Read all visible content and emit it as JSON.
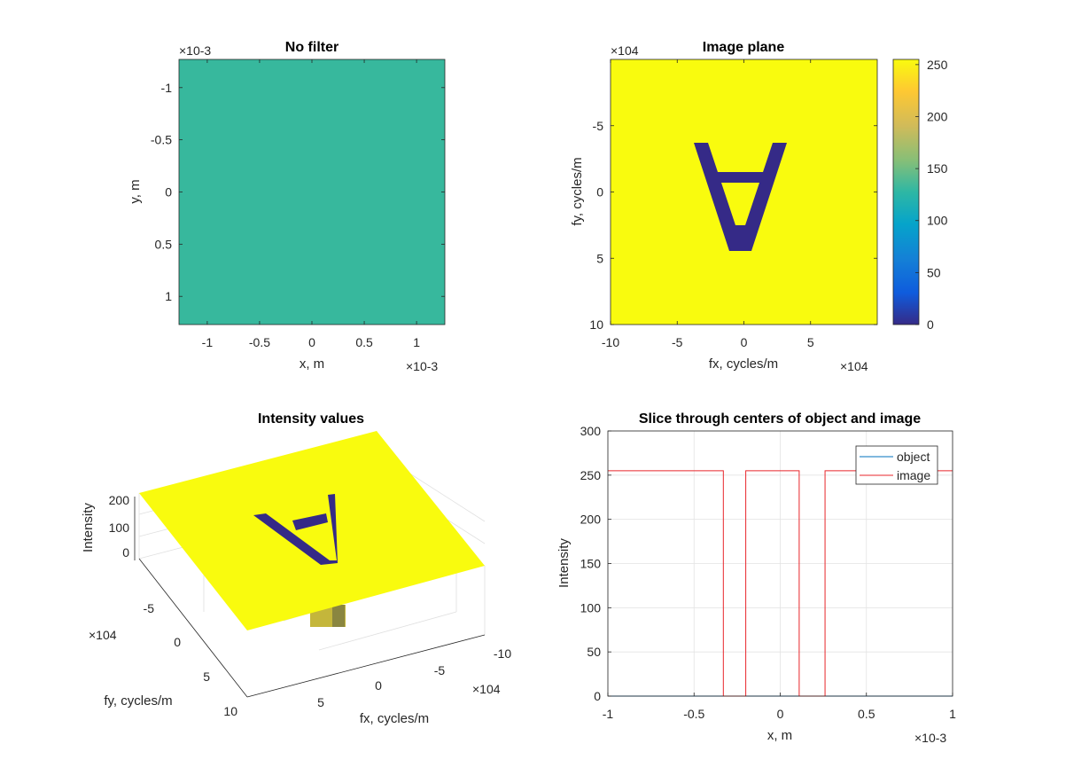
{
  "chart_data": [
    {
      "type": "heatmap",
      "title": "No filter",
      "xlabel": "x, m",
      "ylabel": "y, m",
      "x_exponent": "×10-3",
      "y_exponent": "×10-3",
      "xlim": [
        -1.27,
        1.27
      ],
      "ylim": [
        -1.27,
        1.27
      ],
      "x_ticks": [
        -1,
        -0.5,
        0,
        0.5,
        1
      ],
      "y_ticks": [
        -1,
        -0.5,
        0,
        0.5,
        1
      ],
      "x_tick_labels": [
        "-1",
        "-0.5",
        "0",
        "0.5",
        "1"
      ],
      "y_tick_labels": [
        "-1",
        "-0.5",
        "0",
        "0.5",
        "1"
      ],
      "fill_value": 128,
      "fill_color": "#37b89d"
    },
    {
      "type": "heatmap",
      "title": "Image plane",
      "xlabel": "fx, cycles/m",
      "ylabel": "fy, cycles/m",
      "x_exponent": "×104",
      "y_exponent": "×104",
      "xlim": [
        -10,
        10
      ],
      "ylim": [
        -10,
        10
      ],
      "x_ticks": [
        -10,
        -5,
        0,
        5
      ],
      "y_ticks": [
        -5,
        0,
        5,
        10
      ],
      "x_tick_labels": [
        "-10",
        "-5",
        "0",
        "5"
      ],
      "y_tick_labels": [
        "-5",
        "0",
        "5",
        "10"
      ],
      "background_value": 255,
      "background_color": "#f9fb0e",
      "shape_value": 0,
      "shape_color": "#352a87",
      "colorbar": {
        "ticks": [
          0,
          50,
          100,
          150,
          200,
          250
        ],
        "tick_labels": [
          "0",
          "50",
          "100",
          "150",
          "200",
          "250"
        ],
        "range": [
          0,
          255
        ]
      }
    },
    {
      "type": "surface",
      "title": "Intensity values",
      "xlabel": "fx, cycles/m",
      "ylabel": "fy, cycles/m",
      "zlabel": "Intensity",
      "x_exponent": "×104",
      "y_exponent": "×104",
      "x_tick_labels": [
        "-10",
        "-5",
        "0",
        "5"
      ],
      "y_tick_labels": [
        "-5",
        "0",
        "5",
        "10"
      ],
      "z_tick_labels": [
        "0",
        "100",
        "200"
      ],
      "surface_color": "#f9fb0e",
      "shape_color": "#352a87"
    },
    {
      "type": "line",
      "title": "Slice through centers of object and image",
      "xlabel": "x, m",
      "ylabel": "Intensity",
      "x_exponent": "×10-3",
      "xlim": [
        -1,
        1
      ],
      "ylim": [
        0,
        300
      ],
      "x_ticks": [
        -1,
        -0.5,
        0,
        0.5,
        1
      ],
      "y_ticks": [
        0,
        50,
        100,
        150,
        200,
        250,
        300
      ],
      "x_tick_labels": [
        "-1",
        "-0.5",
        "0",
        "0.5",
        "1"
      ],
      "y_tick_labels": [
        "0",
        "50",
        "100",
        "150",
        "200",
        "250",
        "300"
      ],
      "grid": true,
      "legend_position": "top-right",
      "series": [
        {
          "name": "object",
          "color": "#0072bd",
          "x": [
            -1,
            1
          ],
          "y": [
            0,
            0
          ]
        },
        {
          "name": "image",
          "color": "#e8262b",
          "x": [
            -1,
            -0.33,
            -0.33,
            -0.2,
            -0.2,
            0.11,
            0.11,
            0.26,
            0.26,
            1
          ],
          "y": [
            255,
            255,
            0,
            0,
            255,
            255,
            0,
            0,
            255,
            255
          ]
        }
      ]
    }
  ]
}
